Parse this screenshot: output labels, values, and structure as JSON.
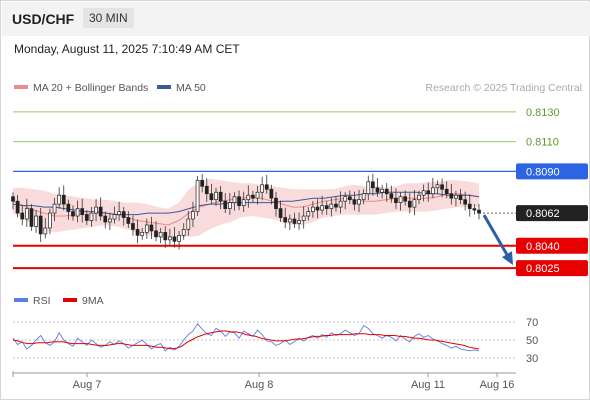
{
  "header": {
    "symbol": "USD/CHF",
    "timeframe": "30 MIN"
  },
  "datetime": "Monday, August 11, 2025 7:10:49 AM CET",
  "legend": {
    "items": [
      {
        "label": "MA 20 + Bollinger Bands",
        "color": "#f08a8a"
      },
      {
        "label": "MA 50",
        "color": "#3a5a9a"
      }
    ],
    "credit": "Research © 2025 Trading Central"
  },
  "colors": {
    "resistance": "#9ac96b",
    "pivot": "#2d64e3",
    "support": "#e60000",
    "current": "#222222",
    "arrow": "#2f5ea8",
    "rsi": "#5b7fe0",
    "rsi_ma": "#e60000"
  },
  "chart_data": [
    {
      "type": "candlestick",
      "price_range": [
        0.8015,
        0.814
      ],
      "x_tick_labels": [
        "Aug 7",
        "Aug 8",
        "Aug 11",
        "Aug 16"
      ],
      "levels": [
        {
          "value": 0.813,
          "label": "0.8130",
          "role": "resistance"
        },
        {
          "value": 0.811,
          "label": "0.8110",
          "role": "resistance"
        },
        {
          "value": 0.809,
          "label": "0.8090",
          "role": "pivot"
        },
        {
          "value": 0.8062,
          "label": "0.8062",
          "role": "current"
        },
        {
          "value": 0.804,
          "label": "0.8040",
          "role": "support"
        },
        {
          "value": 0.8025,
          "label": "0.8025",
          "role": "support"
        }
      ],
      "closes": [
        0.807,
        0.8062,
        0.8058,
        0.8065,
        0.8053,
        0.806,
        0.8048,
        0.8052,
        0.8062,
        0.8068,
        0.8074,
        0.8068,
        0.8063,
        0.806,
        0.8065,
        0.8061,
        0.8057,
        0.8062,
        0.8066,
        0.806,
        0.8056,
        0.8058,
        0.8061,
        0.8063,
        0.8059,
        0.8055,
        0.8051,
        0.8047,
        0.8049,
        0.8054,
        0.805,
        0.8046,
        0.8049,
        0.8044,
        0.8046,
        0.8043,
        0.8047,
        0.8051,
        0.8058,
        0.8063,
        0.8084,
        0.808,
        0.8075,
        0.8071,
        0.8076,
        0.807,
        0.8065,
        0.8069,
        0.8073,
        0.8067,
        0.8071,
        0.8074,
        0.8072,
        0.8076,
        0.8081,
        0.8078,
        0.8072,
        0.8065,
        0.8059,
        0.8056,
        0.8058,
        0.8055,
        0.8057,
        0.806,
        0.8063,
        0.8066,
        0.8064,
        0.8067,
        0.8065,
        0.8068,
        0.8066,
        0.807,
        0.8073,
        0.8071,
        0.8068,
        0.8071,
        0.8075,
        0.8083,
        0.8079,
        0.8076,
        0.8078,
        0.8075,
        0.8072,
        0.8069,
        0.8073,
        0.807,
        0.8066,
        0.8071,
        0.8074,
        0.8077,
        0.8075,
        0.8079,
        0.8081,
        0.8078,
        0.8075,
        0.8072,
        0.8074,
        0.8071,
        0.8068,
        0.8065,
        0.8064,
        0.8062
      ],
      "ma20": [
        0.807,
        0.8067,
        0.8064,
        0.8062,
        0.806,
        0.806,
        0.8061,
        0.8061,
        0.8062,
        0.8062,
        0.8061,
        0.8059,
        0.8057,
        0.8056,
        0.8055,
        0.8054,
        0.8057,
        0.8062,
        0.8066,
        0.8068,
        0.807,
        0.8071,
        0.8072,
        0.8073,
        0.8072,
        0.807,
        0.8068,
        0.8066,
        0.8066,
        0.8068,
        0.807,
        0.8071,
        0.8072,
        0.8071,
        0.807,
        0.807,
        0.8071,
        0.8072,
        0.8072,
        0.8072,
        0.8072,
        0.8073,
        0.8075,
        0.8075,
        0.8074,
        0.8073
      ],
      "ma50": [
        0.8068,
        0.8067,
        0.8067,
        0.8066,
        0.8066,
        0.8065,
        0.8064,
        0.8063,
        0.8063,
        0.8062,
        0.8061,
        0.8061,
        0.8061,
        0.8062,
        0.8062,
        0.8062,
        0.8063,
        0.8065,
        0.8067,
        0.8068,
        0.8068,
        0.8069,
        0.8069,
        0.8069,
        0.8069,
        0.8069,
        0.807,
        0.807,
        0.8071,
        0.8072,
        0.8072,
        0.8073,
        0.8074,
        0.8074,
        0.8075,
        0.8075,
        0.8076,
        0.8076,
        0.8076,
        0.8076,
        0.8075,
        0.8075,
        0.8074,
        0.8074,
        0.8074,
        0.8073
      ],
      "bb_upper": [
        0.8079,
        0.8079,
        0.8078,
        0.8077,
        0.8075,
        0.8074,
        0.8073,
        0.8072,
        0.8071,
        0.8071,
        0.807,
        0.8069,
        0.8069,
        0.8068,
        0.8066,
        0.8065,
        0.8069,
        0.8078,
        0.8083,
        0.8085,
        0.8084,
        0.8083,
        0.8082,
        0.8082,
        0.8081,
        0.808,
        0.8079,
        0.8078,
        0.8078,
        0.8078,
        0.8078,
        0.8078,
        0.808,
        0.8081,
        0.808,
        0.808,
        0.8079,
        0.808,
        0.8082,
        0.8082,
        0.8083,
        0.8083,
        0.8084,
        0.8084,
        0.8083,
        0.8082
      ],
      "bb_lower": [
        0.8062,
        0.8058,
        0.8054,
        0.805,
        0.8049,
        0.805,
        0.8051,
        0.8052,
        0.8053,
        0.8054,
        0.8053,
        0.8051,
        0.8049,
        0.8047,
        0.8046,
        0.8044,
        0.8046,
        0.8046,
        0.8047,
        0.8051,
        0.8054,
        0.8056,
        0.8059,
        0.806,
        0.8059,
        0.8058,
        0.8056,
        0.8054,
        0.8054,
        0.8056,
        0.8059,
        0.806,
        0.8061,
        0.8061,
        0.8061,
        0.8061,
        0.8062,
        0.8063,
        0.8063,
        0.8063,
        0.8063,
        0.8064,
        0.8065,
        0.8066,
        0.8066,
        0.8066
      ],
      "forecast": {
        "from": 0.8062,
        "to": 0.8025
      }
    },
    {
      "type": "line",
      "legend": [
        {
          "label": "RSI",
          "color": "#5b7fe0"
        },
        {
          "label": "9MA",
          "color": "#e60000"
        }
      ],
      "ylim": [
        20,
        80
      ],
      "y_ticks": [
        70,
        50,
        30
      ],
      "rsi": [
        52,
        45,
        48,
        40,
        44,
        50,
        55,
        47,
        44,
        48,
        58,
        50,
        46,
        43,
        52,
        48,
        44,
        50,
        46,
        42,
        44,
        48,
        45,
        49,
        46,
        41,
        44,
        47,
        50,
        45,
        40,
        44,
        46,
        38,
        42,
        39,
        43,
        50,
        56,
        60,
        68,
        62,
        57,
        55,
        63,
        60,
        54,
        59,
        58,
        52,
        60,
        57,
        54,
        61,
        56,
        49,
        48,
        44,
        46,
        50,
        45,
        48,
        52,
        49,
        53,
        55,
        52,
        56,
        53,
        58,
        55,
        57,
        61,
        58,
        55,
        57,
        66,
        63,
        57,
        55,
        52,
        55,
        53,
        49,
        55,
        51,
        48,
        54,
        57,
        53,
        55,
        51,
        49,
        46,
        44,
        41,
        43,
        40,
        39,
        38,
        39,
        38
      ],
      "ma9": [
        50,
        49,
        47,
        46,
        46,
        47,
        47,
        47,
        48,
        48,
        48,
        47,
        46,
        46,
        46,
        46,
        45,
        44,
        44,
        44,
        45,
        46,
        46,
        45,
        44,
        44,
        44,
        44,
        43,
        42,
        42,
        41,
        40,
        41,
        43,
        47,
        50,
        53,
        55,
        57,
        58,
        59,
        60,
        60,
        59,
        59,
        58,
        56,
        55,
        54,
        52,
        51,
        50,
        49,
        49,
        49,
        50,
        51,
        51,
        52,
        53,
        54,
        54,
        55,
        55,
        56,
        56,
        56,
        56,
        57,
        57,
        57,
        56,
        56,
        56,
        55,
        55,
        55,
        54,
        54,
        53,
        52,
        52,
        51,
        50,
        50,
        49,
        48,
        47,
        46,
        45,
        44,
        42,
        41,
        40
      ]
    }
  ]
}
